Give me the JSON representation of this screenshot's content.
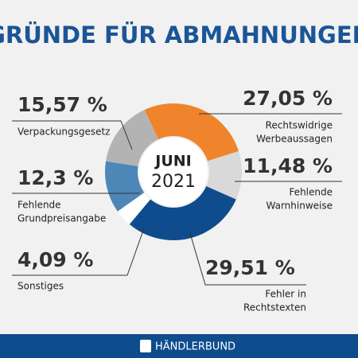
{
  "chart_data": {
    "type": "pie",
    "title": "GRÜNDE FÜR ABMAHNUNGEN",
    "center_label": [
      "JUNI",
      "2021"
    ],
    "categories": [
      [
        "Rechtswidrige",
        "Werbeaussagen"
      ],
      [
        "Fehlende",
        "Warnhinweise"
      ],
      [
        "Fehler in",
        "Rechtstexten"
      ],
      [
        "Sonstiges"
      ],
      [
        "Fehlende",
        "Grundpreisangabe"
      ],
      [
        "Verpackungsgesetz"
      ]
    ],
    "values": [
      27.05,
      11.48,
      29.51,
      4.09,
      12.3,
      15.57
    ],
    "value_labels": [
      "27,05 %",
      "11,48 %",
      "29,51 %",
      "4,09 %",
      "12,3 %",
      "15,57 %"
    ],
    "colors": [
      "#ef842c",
      "#d9d9d9",
      "#0e4c8d",
      "#ffffff",
      "#4d87b8",
      "#b3b3b3"
    ],
    "footer": "HÄNDLERBUND"
  }
}
